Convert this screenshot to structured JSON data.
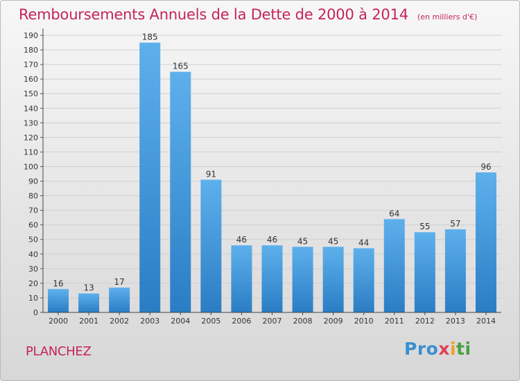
{
  "header": {
    "title": "Remboursements Annuels de la Dette de 2000 à 2014",
    "subtitle": "(en milliers d'€)"
  },
  "footer": {
    "commune": "PLANCHEZ",
    "logo_text": "Proxiti"
  },
  "colors": {
    "bar_top": "#5eb0ec",
    "bar_bottom": "#2a7dc4",
    "title": "#c4245a",
    "grid": "#cfcfcf"
  },
  "chart_data": {
    "type": "bar",
    "categories": [
      "2000",
      "2001",
      "2002",
      "2003",
      "2004",
      "2005",
      "2006",
      "2007",
      "2008",
      "2009",
      "2010",
      "2011",
      "2012",
      "2013",
      "2014"
    ],
    "values": [
      16,
      13,
      17,
      185,
      165,
      91,
      46,
      46,
      45,
      45,
      44,
      64,
      55,
      57,
      96
    ],
    "title": "Remboursements Annuels de la Dette de 2000 à 2014",
    "subtitle": "(en milliers d'€)",
    "ylim": [
      0,
      190
    ],
    "ytick_step": 10,
    "grid": true
  }
}
